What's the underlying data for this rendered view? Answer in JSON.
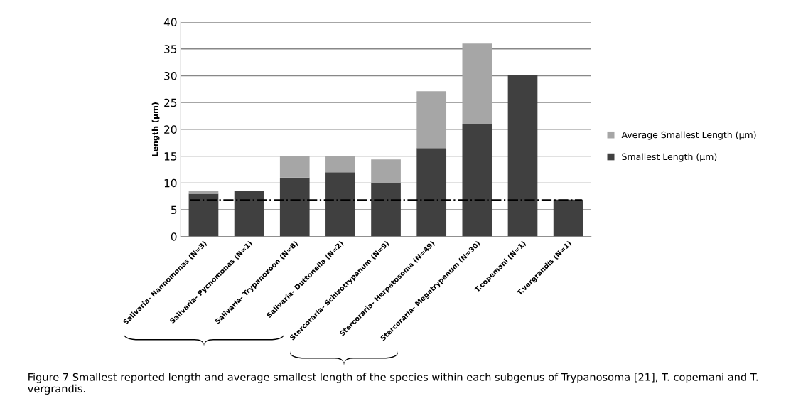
{
  "chart_data": {
    "type": "bar",
    "stacked": true,
    "ylabel": "Length (µm)",
    "categories": [
      "Salivaria- Nannomonas (N=3)",
      "Salivaria- Pycnomonas (N=1)",
      "Salivaria- Trypanozoon (N=8)",
      "Salivaria- Duttonella (N=2)",
      "Stercoraria- Schizotrypanum (N=9)",
      "Stercoraria- Herpetosoma (N=49)",
      "Stercoraria- Megatrypanum (N=30)",
      "T.copemani (N=1)",
      "T.vergrandis (N=1)"
    ],
    "series": [
      {
        "name": "Smallest Length (µm)",
        "color": "#404040",
        "values": [
          8,
          8.5,
          11,
          12,
          10,
          16.5,
          21,
          30.2,
          6.9
        ]
      },
      {
        "name": "Average Smallest Length (µm)",
        "color": "#a6a6a6",
        "values": [
          0.5,
          null,
          4,
          3,
          4.4,
          10.6,
          15,
          null,
          null
        ]
      }
    ],
    "ylim": [
      0,
      40
    ],
    "yticks": [
      0,
      5,
      10,
      15,
      20,
      25,
      30,
      35,
      40
    ],
    "grid": "y",
    "legend": "right",
    "ref_lines": [
      {
        "axis": "y",
        "value": 6.8,
        "color": "#000000",
        "line_style": "dashdot"
      }
    ],
    "annotations": [
      "Figure 7 Smallest reported length and average smallest length of the species within each subgenus of Trypanosoma [21], T. copemani and T. vergrandis."
    ]
  }
}
